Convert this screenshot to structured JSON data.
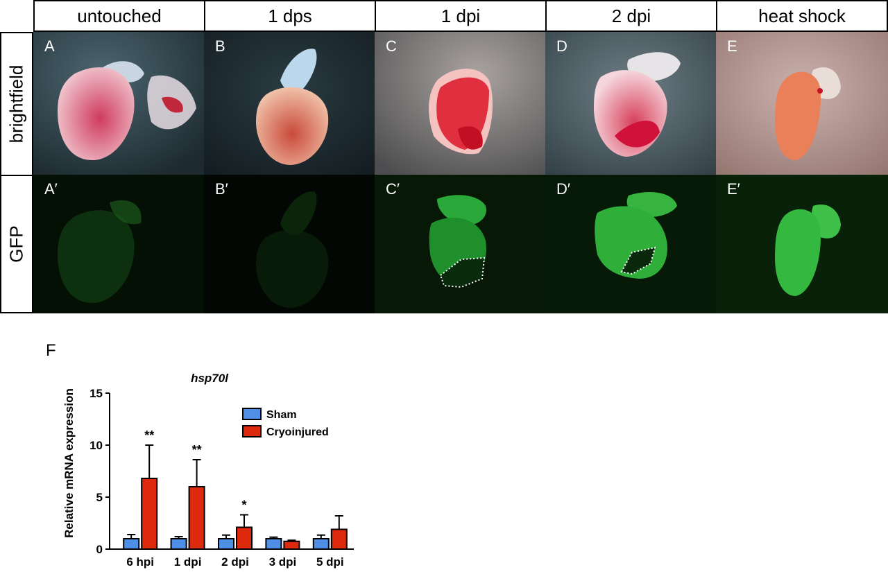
{
  "columns": [
    "untouched",
    "1 dps",
    "1 dpi",
    "2 dpi",
    "heat shock"
  ],
  "rows": [
    "brightfield",
    "GFP"
  ],
  "panel_labels_top": [
    "A",
    "B",
    "C",
    "D",
    "E"
  ],
  "panel_labels_bottom": [
    "A′",
    "B′",
    "C′",
    "D′",
    "E′"
  ],
  "figure_label": "F",
  "chart_data": {
    "type": "bar",
    "title": "hsp70l",
    "ylabel": "Relative mRNA expression",
    "xlabel": "",
    "categories": [
      "6 hpi",
      "1 dpi",
      "2 dpi",
      "3 dpi",
      "5 dpi"
    ],
    "series": [
      {
        "name": "Sham",
        "color": "#4f8fe6",
        "values": [
          1.0,
          1.0,
          1.0,
          1.0,
          1.0
        ],
        "errors": [
          0.4,
          0.2,
          0.35,
          0.15,
          0.35
        ]
      },
      {
        "name": "Cryoinjured",
        "color": "#dd2a0e",
        "values": [
          6.8,
          6.0,
          2.1,
          0.75,
          1.9
        ],
        "errors": [
          3.2,
          2.6,
          1.2,
          0.1,
          1.3
        ]
      }
    ],
    "significance": [
      "**",
      "**",
      "*",
      "",
      ""
    ],
    "ylim": [
      0,
      15
    ],
    "yticks": [
      0,
      5,
      10,
      15
    ],
    "legend_position": "top-right",
    "grid": false
  }
}
